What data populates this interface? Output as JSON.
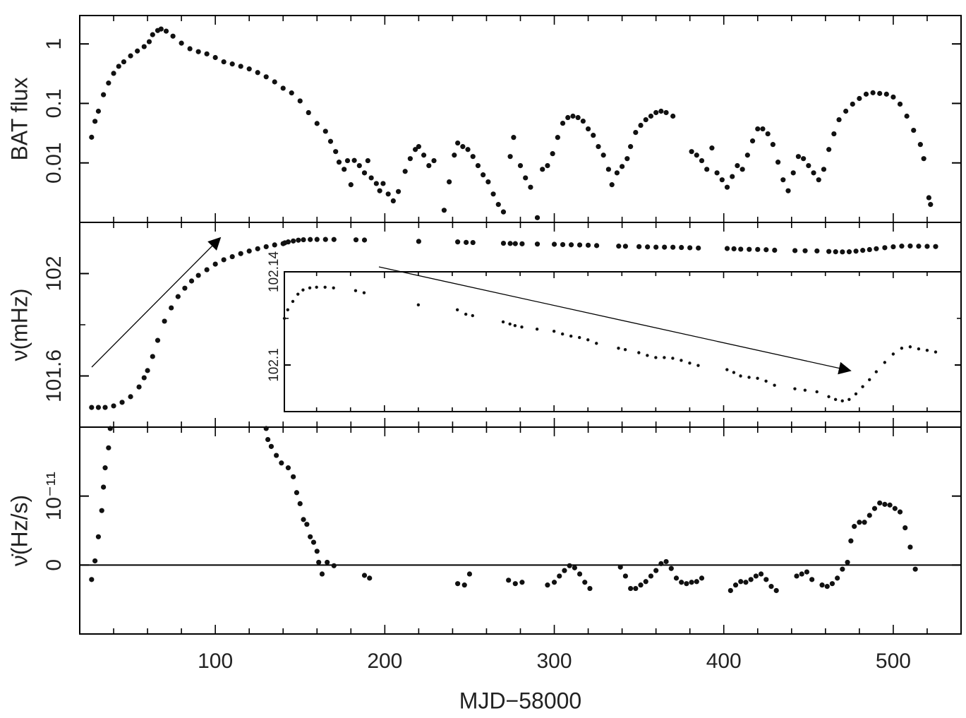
{
  "chart_data": [
    {
      "type": "scatter",
      "ylabel": "BAT flux",
      "log_y": true,
      "xlim": [
        20,
        540
      ],
      "ylim": [
        0.001,
        3
      ],
      "yticks": [
        0.01,
        0.1,
        1
      ],
      "color": "#111111",
      "x": [
        27,
        29,
        31,
        34,
        37,
        40,
        43,
        46,
        50,
        54,
        58,
        61,
        63,
        66,
        68,
        71,
        75,
        80,
        85,
        90,
        95,
        100,
        105,
        110,
        115,
        120,
        125,
        130,
        135,
        140,
        145,
        150,
        155,
        160,
        165,
        168,
        171,
        173,
        176,
        178,
        180,
        182,
        185,
        188,
        190,
        192,
        195,
        197,
        199,
        202,
        205,
        208,
        212,
        215,
        218,
        220,
        223,
        226,
        229,
        235,
        238,
        241,
        243,
        246,
        249,
        252,
        255,
        258,
        261,
        264,
        267,
        270,
        274,
        276,
        280,
        283,
        286,
        290,
        293,
        296,
        299,
        302,
        305,
        308,
        311,
        314,
        317,
        320,
        323,
        326,
        329,
        332,
        334,
        337,
        340,
        343,
        345,
        348,
        351,
        354,
        357,
        360,
        363,
        366,
        370,
        381,
        384,
        387,
        390,
        393,
        396,
        399,
        402,
        405,
        408,
        411,
        414,
        417,
        420,
        423,
        426,
        429,
        432,
        435,
        438,
        441,
        444,
        447,
        450,
        453,
        456,
        459,
        462,
        465,
        468,
        472,
        476,
        480,
        484,
        488,
        492,
        496,
        500,
        504,
        508,
        512,
        516,
        518,
        521,
        522
      ],
      "values": [
        0.027,
        0.05,
        0.074,
        0.14,
        0.22,
        0.32,
        0.42,
        0.5,
        0.63,
        0.76,
        0.9,
        1.09,
        1.43,
        1.68,
        1.78,
        1.64,
        1.35,
        1.03,
        0.83,
        0.74,
        0.68,
        0.59,
        0.5,
        0.46,
        0.42,
        0.38,
        0.33,
        0.28,
        0.23,
        0.18,
        0.15,
        0.11,
        0.07,
        0.046,
        0.034,
        0.023,
        0.0155,
        0.0103,
        0.0078,
        0.0109,
        0.0043,
        0.011,
        0.009,
        0.0068,
        0.0109,
        0.0056,
        0.0045,
        0.0034,
        0.0045,
        0.003,
        0.0023,
        0.0033,
        0.0072,
        0.0118,
        0.0168,
        0.0188,
        0.0135,
        0.009,
        0.0109,
        0.0016,
        0.0048,
        0.0135,
        0.0216,
        0.0188,
        0.0168,
        0.0128,
        0.009,
        0.0063,
        0.0048,
        0.003,
        0.002,
        0.0015,
        0.0128,
        0.0268,
        0.009,
        0.0056,
        0.0039,
        0.0012,
        0.0078,
        0.009,
        0.0143,
        0.0268,
        0.0464,
        0.0578,
        0.0611,
        0.0578,
        0.0504,
        0.0373,
        0.0291,
        0.0188,
        0.0135,
        0.0078,
        0.0043,
        0.0068,
        0.0087,
        0.0118,
        0.0188,
        0.0325,
        0.0428,
        0.0532,
        0.0611,
        0.0701,
        0.074,
        0.0701,
        0.0611,
        0.0155,
        0.0135,
        0.0109,
        0.0078,
        0.0178,
        0.0068,
        0.0052,
        0.0039,
        0.0059,
        0.009,
        0.0078,
        0.0135,
        0.0234,
        0.0373,
        0.0373,
        0.0308,
        0.0204,
        0.0103,
        0.0052,
        0.0034,
        0.0068,
        0.0128,
        0.0118,
        0.009,
        0.0068,
        0.0052,
        0.0078,
        0.0168,
        0.0308,
        0.0532,
        0.074,
        0.0973,
        0.121,
        0.143,
        0.151,
        0.147,
        0.143,
        0.128,
        0.0973,
        0.0611,
        0.0353,
        0.0204,
        0.0118,
        0.0026,
        0.002
      ]
    },
    {
      "type": "scatter",
      "ylabel": "ν(mHz)",
      "xlim": [
        20,
        540
      ],
      "ylim": [
        101.4,
        102.2
      ],
      "yticks": [
        101.6,
        102
      ],
      "yminor_ticks": [
        101.8
      ],
      "color": "#111111",
      "x": [
        27,
        31,
        35,
        40,
        45,
        50,
        55,
        58,
        60,
        63,
        66,
        70,
        74,
        78,
        82,
        86,
        90,
        95,
        100,
        105,
        110,
        115,
        120,
        125,
        130,
        135,
        140,
        141,
        143,
        146,
        149,
        152,
        156,
        160,
        165,
        170,
        183,
        188,
        220,
        243,
        248,
        252,
        270,
        274,
        277,
        281,
        290,
        300,
        305,
        310,
        315,
        320,
        325,
        338,
        342,
        350,
        355,
        360,
        365,
        370,
        375,
        380,
        385,
        402,
        406,
        410,
        415,
        420,
        425,
        430,
        442,
        448,
        455,
        462,
        466,
        470,
        474,
        478,
        482,
        486,
        490,
        495,
        500,
        505,
        510,
        515,
        520,
        525
      ],
      "values": [
        101.477,
        101.477,
        101.477,
        101.483,
        101.497,
        101.519,
        101.557,
        101.593,
        101.621,
        101.676,
        101.739,
        101.814,
        101.866,
        101.91,
        101.943,
        101.971,
        101.993,
        102.015,
        102.037,
        102.054,
        102.066,
        102.078,
        102.088,
        102.097,
        102.105,
        102.112,
        102.117,
        102.12,
        102.1237,
        102.1273,
        102.1304,
        102.1322,
        102.1331,
        102.1334,
        102.1334,
        102.1331,
        102.1319,
        102.131,
        102.1258,
        102.1237,
        102.1218,
        102.1212,
        102.1185,
        102.1176,
        102.1169,
        102.1163,
        102.1154,
        102.1145,
        102.1133,
        102.1124,
        102.1118,
        102.1108,
        102.1093,
        102.1072,
        102.1066,
        102.1053,
        102.1041,
        102.1032,
        102.1032,
        102.1029,
        102.102,
        102.1008,
        102.0998,
        102.098,
        102.0968,
        102.0953,
        102.0947,
        102.0943,
        102.0931,
        102.0913,
        102.0898,
        102.0892,
        102.0885,
        102.0864,
        102.0852,
        102.0846,
        102.0852,
        102.0876,
        102.0907,
        102.0937,
        102.0971,
        102.1011,
        102.1047,
        102.1072,
        102.1078,
        102.1069,
        102.1063,
        102.1056
      ]
    },
    {
      "type": "scatter",
      "ylabel": "ν̇(Hz/s)",
      "xlabel": "MJD−58000",
      "xlim": [
        20,
        540
      ],
      "ylim": [
        -1e-11,
        2e-11
      ],
      "yticks": [
        0,
        {
          "value": 1e-11,
          "label": "10⁻¹¹"
        }
      ],
      "zero_line": true,
      "color": "#111111",
      "xticks": [
        100,
        200,
        300,
        400,
        500
      ],
      "xminor_ticks": [
        20,
        40,
        60,
        80,
        120,
        140,
        160,
        180,
        220,
        240,
        260,
        280,
        320,
        340,
        360,
        380,
        420,
        440,
        460,
        480,
        520,
        540
      ],
      "x": [
        27,
        29,
        31,
        33,
        34,
        35,
        37,
        38,
        130,
        131,
        133,
        136,
        139,
        143,
        146,
        148,
        150,
        152,
        154,
        156,
        158,
        160,
        161,
        163,
        166,
        170,
        188,
        191,
        243,
        247,
        250,
        273,
        277,
        281,
        296,
        300,
        303,
        306,
        309,
        312,
        315,
        318,
        321,
        339,
        342,
        345,
        348,
        351,
        354,
        357,
        360,
        363,
        366,
        369,
        372,
        375,
        378,
        381,
        384,
        387,
        404,
        407,
        410,
        413,
        416,
        419,
        422,
        425,
        428,
        431,
        443,
        446,
        449,
        452,
        458,
        461,
        464,
        467,
        470,
        473,
        475,
        477,
        480,
        483,
        486,
        489,
        492,
        495,
        498,
        501,
        504,
        507,
        510,
        513
      ],
      "values": [
        -2.1e-12,
        6e-13,
        4.1e-12,
        7.9e-12,
        1.13e-11,
        1.41e-11,
        1.7e-11,
        1.98e-11,
        1.98e-11,
        1.82e-11,
        1.72e-11,
        1.59e-11,
        1.48e-11,
        1.41e-11,
        1.28e-11,
        1.05e-11,
        8.9e-12,
        6.6e-12,
        5.9e-12,
        4.1e-12,
        3.3e-12,
        2e-12,
        4e-13,
        -1.3e-12,
        4e-13,
        -1e-13,
        -1.5e-12,
        -1.9e-12,
        -2.7e-12,
        -2.9e-12,
        -1.3e-12,
        -2.2e-12,
        -2.7e-12,
        -2.5e-12,
        -2.9e-12,
        -2.5e-12,
        -1.6e-12,
        -8e-13,
        -1e-13,
        -4e-13,
        -1.3e-12,
        -2.5e-12,
        -3.4e-12,
        -3e-13,
        -1.6e-12,
        -3.4e-12,
        -3.4e-12,
        -2.9e-12,
        -2.4e-12,
        -1.6e-12,
        -8e-13,
        2e-13,
        5e-13,
        -5e-13,
        -1.9e-12,
        -2.5e-12,
        -2.7e-12,
        -2.5e-12,
        -2.4e-12,
        -1.9e-12,
        -3.7e-12,
        -2.9e-12,
        -2.4e-12,
        -2.5e-12,
        -2.1e-12,
        -1.6e-12,
        -1.3e-12,
        -2.1e-12,
        -3.1e-12,
        -3.7e-12,
        -1.6e-12,
        -1.3e-12,
        -1e-12,
        -2.1e-12,
        -2.9e-12,
        -3.1e-12,
        -2.7e-12,
        -1.9e-12,
        -6e-13,
        4e-13,
        3.5e-12,
        5.6e-12,
        6.2e-12,
        6.2e-12,
        7.2e-12,
        8.2e-12,
        9e-12,
        8.8e-12,
        8.7e-12,
        8.2e-12,
        7.7e-12,
        5.4e-12,
        2.6e-12,
        -6e-13
      ]
    },
    {
      "type": "scatter",
      "xlim": [
        141,
        540
      ],
      "ylim": [
        102.08,
        102.14
      ],
      "yticks": [
        102.1,
        102.14
      ],
      "yminor_ticks": [
        102.12
      ],
      "color": "#111111",
      "x": [
        141,
        143,
        146,
        149,
        152,
        156,
        160,
        165,
        170,
        183,
        188,
        220,
        243,
        248,
        252,
        270,
        274,
        277,
        281,
        290,
        300,
        305,
        310,
        315,
        320,
        325,
        338,
        342,
        350,
        355,
        360,
        365,
        370,
        375,
        380,
        385,
        402,
        406,
        410,
        415,
        420,
        425,
        430,
        442,
        448,
        455,
        462,
        466,
        470,
        474,
        478,
        482,
        486,
        490,
        495,
        500,
        505,
        510,
        515,
        520,
        525
      ],
      "values": [
        102.12,
        102.1237,
        102.1273,
        102.1304,
        102.1322,
        102.1331,
        102.1334,
        102.1334,
        102.1331,
        102.1319,
        102.131,
        102.1258,
        102.1237,
        102.1218,
        102.1212,
        102.1185,
        102.1176,
        102.1169,
        102.1163,
        102.1154,
        102.1145,
        102.1133,
        102.1124,
        102.1118,
        102.1108,
        102.1093,
        102.1072,
        102.1066,
        102.1053,
        102.1041,
        102.1032,
        102.1032,
        102.1029,
        102.102,
        102.1008,
        102.0998,
        102.098,
        102.0968,
        102.0953,
        102.0947,
        102.0943,
        102.0931,
        102.0913,
        102.0898,
        102.0892,
        102.0885,
        102.0864,
        102.0852,
        102.0846,
        102.0852,
        102.0876,
        102.0907,
        102.0937,
        102.0971,
        102.1011,
        102.1047,
        102.1072,
        102.1078,
        102.1069,
        102.1063,
        102.1056
      ]
    }
  ]
}
